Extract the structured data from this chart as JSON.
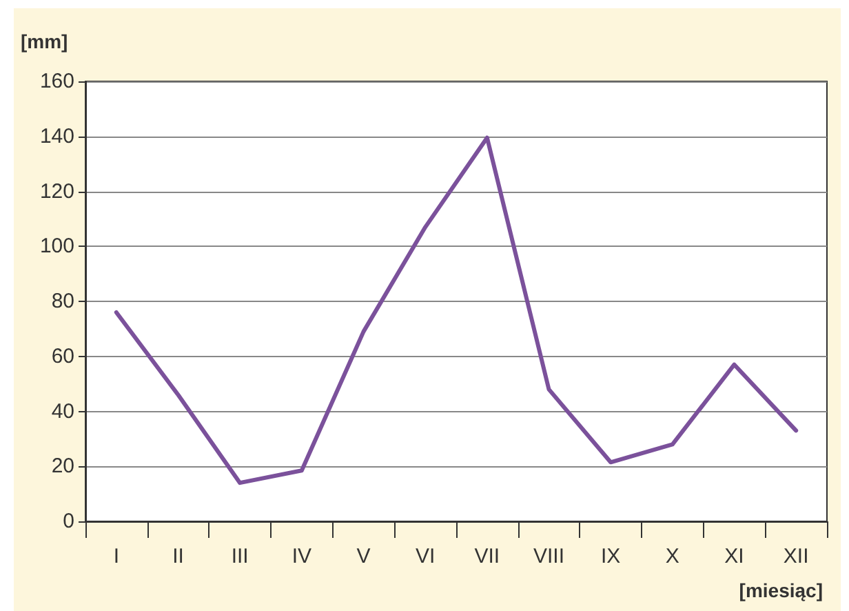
{
  "chart_data": {
    "type": "line",
    "ylabel": "[mm]",
    "xlabel": "[miesiąc]",
    "categories": [
      "I",
      "II",
      "III",
      "IV",
      "V",
      "VI",
      "VII",
      "VIII",
      "IX",
      "X",
      "XI",
      "XII"
    ],
    "series": [
      {
        "color": "#7b519b",
        "values": [
          76,
          46,
          14,
          18.5,
          69,
          107,
          139.5,
          48,
          21.5,
          28,
          57,
          33
        ]
      }
    ],
    "ylim": [
      0,
      160
    ],
    "yticks": [
      0,
      20,
      40,
      60,
      80,
      100,
      120,
      140,
      160
    ],
    "grid": "y",
    "marker": "none",
    "line_style": "solid"
  }
}
